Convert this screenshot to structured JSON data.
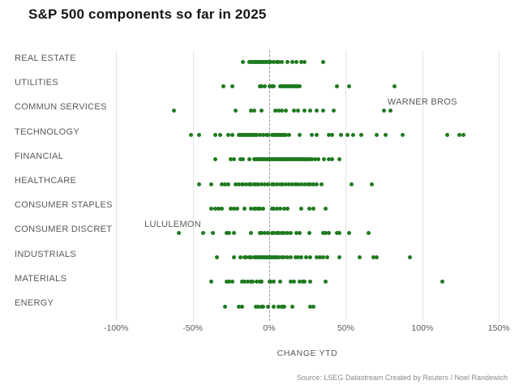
{
  "title": "S&P 500 components so far in 2025",
  "source": "Source: LSEG Datastream  Created by Reuters / Noel Randewich",
  "chart_data": {
    "type": "scatter",
    "subtype": "strip-plot",
    "title": "S&P 500 components so far in 2025",
    "xlabel": "CHANGE YTD",
    "ylabel": "",
    "xlim": [
      -100,
      150
    ],
    "grid": true,
    "zero_line_style": "dashed",
    "dot_color": "#1f7a1f",
    "x_ticks": [
      "-100%",
      "-50%",
      "0%",
      "50%",
      "100%",
      "150%"
    ],
    "x_tick_values": [
      -100,
      -50,
      0,
      50,
      100,
      150
    ],
    "categories": [
      {
        "label": "REAL ESTATE",
        "values": [
          -17,
          -13,
          -12,
          -11,
          -10,
          -9,
          -8,
          -7,
          -6,
          -5,
          -4,
          -3,
          -2,
          -1,
          0,
          1,
          3,
          5,
          6,
          8,
          12,
          15,
          18,
          21,
          23,
          35
        ]
      },
      {
        "label": "UTILITIES",
        "values": [
          -30,
          -24,
          -6,
          -5,
          -3,
          0,
          2,
          3,
          7,
          8,
          9,
          10,
          11,
          12,
          13,
          14,
          15,
          16,
          17,
          18,
          19,
          20,
          44,
          52,
          82
        ]
      },
      {
        "label": "COMMUN SERVICES",
        "values": [
          -62,
          -22,
          -12,
          -10,
          -5,
          4,
          6,
          8,
          11,
          16,
          19,
          23,
          27,
          31,
          35,
          42,
          75,
          79
        ]
      },
      {
        "label": "TECHNOLOGY",
        "values": [
          -51,
          -46,
          -35,
          -32,
          -27,
          -24,
          -20,
          -19,
          -18,
          -17,
          -16,
          -15,
          -14,
          -13,
          -12,
          -11,
          -10,
          -9,
          -8,
          -6,
          -4,
          -2,
          -1,
          2,
          3,
          4,
          5,
          6,
          7,
          8,
          9,
          10,
          11,
          13,
          20,
          28,
          31,
          39,
          41,
          47,
          51,
          55,
          60,
          70,
          76,
          87,
          116,
          124,
          127
        ]
      },
      {
        "label": "FINANCIAL",
        "values": [
          -35,
          -25,
          -23,
          -19,
          -17,
          -13,
          -10,
          -9,
          -8,
          -7,
          -6,
          -5,
          -4,
          -3,
          -2,
          -1,
          0,
          1,
          2,
          3,
          4,
          5,
          6,
          7,
          8,
          9,
          10,
          11,
          12,
          13,
          14,
          15,
          16,
          17,
          18,
          19,
          20,
          21,
          22,
          23,
          24,
          25,
          26,
          28,
          30,
          32,
          36,
          39,
          41,
          46
        ]
      },
      {
        "label": "HEALTHCARE",
        "values": [
          -46,
          -38,
          -31,
          -29,
          -27,
          -22,
          -20,
          -18,
          -17,
          -15,
          -13,
          -12,
          -10,
          -9,
          -7,
          -5,
          -3,
          -1,
          2,
          3,
          5,
          7,
          9,
          11,
          13,
          15,
          17,
          19,
          21,
          23,
          25,
          27,
          29,
          31,
          34,
          54,
          67
        ]
      },
      {
        "label": "CONSUMER STAPLES",
        "values": [
          -38,
          -35,
          -33,
          -31,
          -25,
          -23,
          -21,
          -16,
          -12,
          -10,
          -9,
          -7,
          -6,
          -4,
          2,
          3,
          5,
          7,
          10,
          12,
          21,
          26,
          29,
          37
        ]
      },
      {
        "label": "CONSUMER DISCRET",
        "values": [
          -59,
          -43,
          -37,
          -28,
          -26,
          -23,
          -12,
          -6,
          -5,
          -3,
          -1,
          2,
          3,
          5,
          6,
          8,
          10,
          12,
          14,
          18,
          20,
          26,
          35,
          37,
          39,
          44,
          46,
          52,
          65
        ]
      },
      {
        "label": "INDUSTRIALS",
        "values": [
          -34,
          -23,
          -19,
          -16,
          -15,
          -13,
          -12,
          -10,
          -9,
          -8,
          -7,
          -6,
          -5,
          -4,
          -3,
          -2,
          -1,
          0,
          1,
          2,
          3,
          4,
          5,
          6,
          8,
          10,
          12,
          14,
          17,
          19,
          21,
          24,
          27,
          31,
          33,
          35,
          38,
          46,
          59,
          68,
          70,
          92
        ]
      },
      {
        "label": "MATERIALS",
        "values": [
          -38,
          -28,
          -26,
          -24,
          -18,
          -16,
          -14,
          -12,
          -11,
          -8,
          -6,
          -5,
          0,
          1,
          3,
          7,
          14,
          16,
          20,
          22,
          23,
          27,
          37,
          113
        ]
      },
      {
        "label": "ENERGY",
        "values": [
          -29,
          -20,
          -18,
          -9,
          -7,
          -5,
          -4,
          -1,
          3,
          6,
          8,
          9,
          10,
          15,
          27,
          29
        ]
      }
    ],
    "annotations": [
      {
        "text": "WARNER BROS",
        "x_pct": 100,
        "row": 2,
        "dy": -10
      },
      {
        "text": "LULULEMON",
        "x_pct": -63,
        "row": 7,
        "dy": -10
      }
    ]
  }
}
